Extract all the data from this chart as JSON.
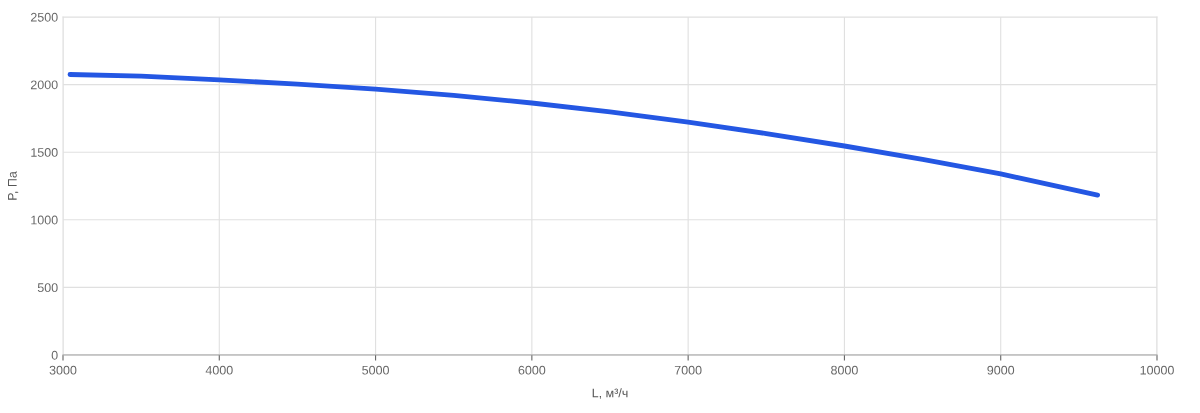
{
  "chart_data": {
    "type": "line",
    "xlabel": "L, м³/ч",
    "ylabel": "P, Па",
    "x": [
      3045,
      3500,
      4000,
      4500,
      5000,
      5500,
      6000,
      6500,
      7000,
      7500,
      8000,
      8500,
      9000,
      9620
    ],
    "series": [
      {
        "color": "#2457e3",
        "values": [
          2075,
          2063,
          2035,
          2003,
          1967,
          1920,
          1864,
          1798,
          1723,
          1638,
          1546,
          1447,
          1339,
          1183
        ]
      }
    ],
    "xlim": [
      3000,
      10000
    ],
    "xticks": [
      3000,
      4000,
      5000,
      6000,
      7000,
      8000,
      9000,
      10000
    ],
    "ylim": [
      0,
      2500
    ],
    "yticks": [
      0,
      500,
      1000,
      1500,
      2000,
      2500
    ],
    "grid": true,
    "legend": false,
    "marker": "none",
    "line_style": "solid"
  }
}
